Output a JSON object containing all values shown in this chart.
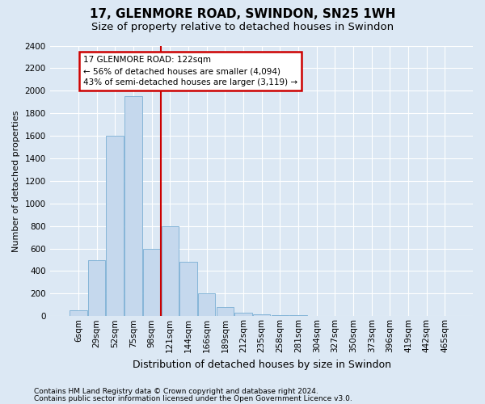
{
  "title": "17, GLENMORE ROAD, SWINDON, SN25 1WH",
  "subtitle": "Size of property relative to detached houses in Swindon",
  "xlabel": "Distribution of detached houses by size in Swindon",
  "ylabel": "Number of detached properties",
  "footer1": "Contains HM Land Registry data © Crown copyright and database right 2024.",
  "footer2": "Contains public sector information licensed under the Open Government Licence v3.0.",
  "categories": [
    "6sqm",
    "29sqm",
    "52sqm",
    "75sqm",
    "98sqm",
    "121sqm",
    "144sqm",
    "166sqm",
    "189sqm",
    "212sqm",
    "235sqm",
    "258sqm",
    "281sqm",
    "304sqm",
    "327sqm",
    "350sqm",
    "373sqm",
    "396sqm",
    "419sqm",
    "442sqm",
    "465sqm"
  ],
  "values": [
    50,
    500,
    1600,
    1950,
    600,
    800,
    480,
    200,
    80,
    28,
    18,
    12,
    8,
    4,
    2,
    1,
    0,
    0,
    0,
    0,
    0
  ],
  "bar_color": "#c5d8ed",
  "bar_edge_color": "#7aafd4",
  "vline_color": "#cc0000",
  "vline_xindex": 4.5,
  "annotation_text": "17 GLENMORE ROAD: 122sqm\n← 56% of detached houses are smaller (4,094)\n43% of semi-detached houses are larger (3,119) →",
  "annotation_box_facecolor": "#ffffff",
  "annotation_box_edgecolor": "#cc0000",
  "ylim": [
    0,
    2400
  ],
  "yticks": [
    0,
    200,
    400,
    600,
    800,
    1000,
    1200,
    1400,
    1600,
    1800,
    2000,
    2200,
    2400
  ],
  "bg_color": "#dce8f4",
  "plot_bg_color": "#dce8f4",
  "grid_color": "#ffffff",
  "title_fontsize": 11,
  "subtitle_fontsize": 9.5,
  "xlabel_fontsize": 9,
  "ylabel_fontsize": 8,
  "tick_fontsize": 7.5,
  "ann_fontsize": 7.5,
  "footer_fontsize": 6.5
}
